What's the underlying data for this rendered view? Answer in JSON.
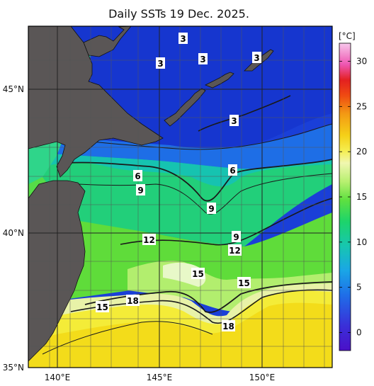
{
  "title": "Daily SSTs 19 Dec. 2025.",
  "colorbar": {
    "unit": "[°C]",
    "min": -2,
    "max": 32,
    "ticks": [
      "30",
      "25",
      "20",
      "15",
      "10",
      "5",
      "0"
    ],
    "tick_values": [
      30,
      25,
      20,
      15,
      10,
      5,
      0
    ]
  },
  "axes": {
    "lon_ticks": [
      "140°E",
      "145°E",
      "150°E"
    ],
    "lon_values": [
      140,
      145,
      150
    ],
    "lat_ticks": [
      "45°N",
      "40°N",
      "35°N"
    ],
    "lat_values": [
      45,
      40,
      35
    ]
  },
  "contour_labels": [
    "3",
    "3",
    "3",
    "3",
    "3",
    "6",
    "6",
    "9",
    "9",
    "9",
    "12",
    "12",
    "15",
    "15",
    "15",
    "18",
    "18"
  ],
  "colors": {
    "land": "#5a5656",
    "frame": "#000000",
    "grid": "#555555"
  }
}
